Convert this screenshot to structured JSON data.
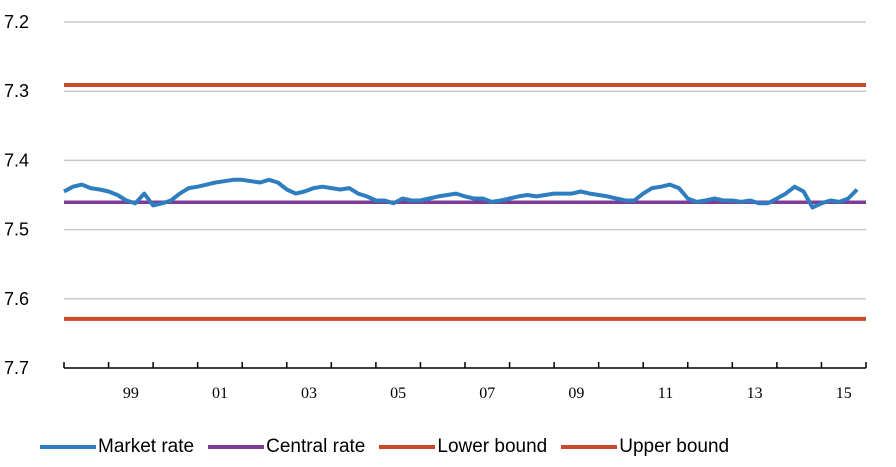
{
  "chart_data": {
    "type": "line",
    "title": "",
    "xlabel": "",
    "ylabel": "",
    "y_inverted": true,
    "ylim": [
      7.2,
      7.7
    ],
    "yticks": [
      7.2,
      7.3,
      7.4,
      7.5,
      7.6,
      7.7
    ],
    "ytick_labels": [
      "7.2",
      "7.3",
      "7.4",
      "7.5",
      "7.6",
      "7.7"
    ],
    "xlim": [
      1998,
      2016
    ],
    "xticks": [
      1999,
      2001,
      2003,
      2005,
      2007,
      2009,
      2011,
      2013,
      2015
    ],
    "xtick_labels": [
      "99",
      "01",
      "03",
      "05",
      "07",
      "09",
      "11",
      "13",
      "15"
    ],
    "grid": "horizontal",
    "legend_position": "bottom",
    "series": [
      {
        "name": "Market rate",
        "color": "#2e7ebf",
        "x": [
          1998.0,
          1998.2,
          1998.4,
          1998.6,
          1998.8,
          1999.0,
          1999.2,
          1999.4,
          1999.6,
          1999.8,
          2000.0,
          2000.2,
          2000.4,
          2000.6,
          2000.8,
          2001.0,
          2001.2,
          2001.4,
          2001.6,
          2001.8,
          2002.0,
          2002.2,
          2002.4,
          2002.6,
          2002.8,
          2003.0,
          2003.2,
          2003.4,
          2003.6,
          2003.8,
          2004.0,
          2004.2,
          2004.4,
          2004.6,
          2004.8,
          2005.0,
          2005.2,
          2005.4,
          2005.6,
          2005.8,
          2006.0,
          2006.2,
          2006.4,
          2006.6,
          2006.8,
          2007.0,
          2007.2,
          2007.4,
          2007.6,
          2007.8,
          2008.0,
          2008.2,
          2008.4,
          2008.6,
          2008.8,
          2009.0,
          2009.2,
          2009.4,
          2009.6,
          2009.8,
          2010.0,
          2010.2,
          2010.4,
          2010.6,
          2010.8,
          2011.0,
          2011.2,
          2011.4,
          2011.6,
          2011.8,
          2012.0,
          2012.2,
          2012.4,
          2012.6,
          2012.8,
          2013.0,
          2013.2,
          2013.4,
          2013.6,
          2013.8,
          2014.0,
          2014.2,
          2014.4,
          2014.6,
          2014.8,
          2015.0,
          2015.2,
          2015.4,
          2015.6,
          2015.8
        ],
        "values": [
          7.445,
          7.438,
          7.435,
          7.44,
          7.442,
          7.445,
          7.45,
          7.458,
          7.462,
          7.448,
          7.465,
          7.462,
          7.458,
          7.448,
          7.44,
          7.438,
          7.435,
          7.432,
          7.43,
          7.428,
          7.428,
          7.43,
          7.432,
          7.428,
          7.432,
          7.442,
          7.448,
          7.445,
          7.44,
          7.438,
          7.44,
          7.442,
          7.44,
          7.448,
          7.452,
          7.458,
          7.458,
          7.462,
          7.455,
          7.458,
          7.458,
          7.455,
          7.452,
          7.45,
          7.448,
          7.452,
          7.455,
          7.455,
          7.46,
          7.458,
          7.455,
          7.452,
          7.45,
          7.452,
          7.45,
          7.448,
          7.448,
          7.448,
          7.445,
          7.448,
          7.45,
          7.452,
          7.455,
          7.458,
          7.458,
          7.448,
          7.44,
          7.438,
          7.435,
          7.44,
          7.455,
          7.46,
          7.458,
          7.455,
          7.458,
          7.458,
          7.46,
          7.458,
          7.462,
          7.462,
          7.455,
          7.448,
          7.438,
          7.445,
          7.468,
          7.462,
          7.458,
          7.46,
          7.455,
          7.442
        ]
      },
      {
        "name": "Central rate",
        "color": "#7d3c98",
        "x": [
          1998,
          2016
        ],
        "values": [
          7.46038,
          7.46038
        ]
      },
      {
        "name": "Lower bound",
        "color": "#c94a2a",
        "x": [
          1998,
          2016
        ],
        "values": [
          7.629,
          7.629
        ]
      },
      {
        "name": "Upper bound",
        "color": "#c94a2a",
        "x": [
          1998,
          2016
        ],
        "values": [
          7.291,
          7.291
        ]
      }
    ]
  }
}
